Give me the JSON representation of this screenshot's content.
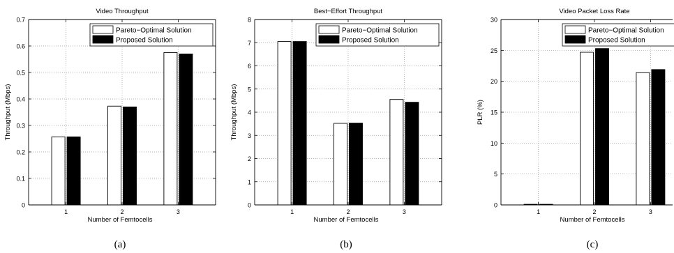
{
  "chart_data": [
    {
      "type": "bar",
      "title": "Video Throughput",
      "xlabel": "Number of Femtocells",
      "ylabel": "Throughput (Mbps)",
      "categories": [
        "1",
        "2",
        "3"
      ],
      "ylim": [
        0,
        0.7
      ],
      "yticks": [
        "0",
        "0.1",
        "0.2",
        "0.3",
        "0.4",
        "0.5",
        "0.6",
        "0.7"
      ],
      "grid": true,
      "legend_position": "top-right",
      "caption": "(a)",
      "series": [
        {
          "name": "Pareto−Optimal Solution",
          "color": "#ffffff",
          "values": [
            0.257,
            0.373,
            0.575
          ]
        },
        {
          "name": "Proposed Solution",
          "color": "#000000",
          "values": [
            0.257,
            0.37,
            0.57
          ]
        }
      ]
    },
    {
      "type": "bar",
      "title": "Best−Effort Throughput",
      "xlabel": "Number of Femtocells",
      "ylabel": "Throughput (Mbps)",
      "categories": [
        "1",
        "2",
        "3"
      ],
      "ylim": [
        0,
        8
      ],
      "yticks": [
        "0",
        "1",
        "2",
        "3",
        "4",
        "5",
        "6",
        "7",
        "8"
      ],
      "grid": true,
      "legend_position": "top-right",
      "caption": "(b)",
      "series": [
        {
          "name": "Pareto−Optimal Solution",
          "color": "#ffffff",
          "values": [
            7.05,
            3.52,
            4.55
          ]
        },
        {
          "name": "Proposed Solution",
          "color": "#000000",
          "values": [
            7.05,
            3.53,
            4.43
          ]
        }
      ]
    },
    {
      "type": "bar",
      "title": "Video Packet Loss Rate",
      "xlabel": "Number of Femtocells",
      "ylabel": "PLR (%)",
      "categories": [
        "1",
        "2",
        "3"
      ],
      "ylim": [
        0,
        30
      ],
      "yticks": [
        "0",
        "5",
        "10",
        "15",
        "20",
        "25",
        "30"
      ],
      "grid": true,
      "legend_position": "top-right",
      "caption": "(c)",
      "series": [
        {
          "name": "Pareto−Optimal Solution",
          "color": "#ffffff",
          "values": [
            0.1,
            24.7,
            21.4
          ]
        },
        {
          "name": "Proposed Solution",
          "color": "#000000",
          "values": [
            0.1,
            25.3,
            21.9
          ]
        }
      ]
    }
  ]
}
